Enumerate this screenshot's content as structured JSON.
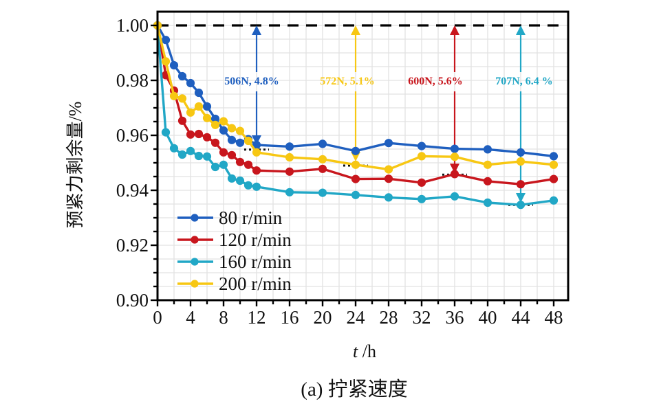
{
  "chart_data": {
    "type": "line",
    "title": "",
    "caption": "(a) 拧紧速度",
    "xlabel_italic": "t",
    "xlabel_unit": " /h",
    "ylabel": "预紧力剩余量/%",
    "xlim": [
      0,
      49.8
    ],
    "ylim": [
      0.9,
      1.005
    ],
    "xticks": [
      0,
      4,
      8,
      12,
      16,
      20,
      24,
      28,
      32,
      36,
      40,
      44,
      48
    ],
    "xtick_labels": [
      "0",
      "4",
      "8",
      "12",
      "16",
      "20",
      "24",
      "28",
      "32",
      "36",
      "40",
      "44",
      "48"
    ],
    "yticks": [
      0.9,
      0.92,
      0.94,
      0.96,
      0.98,
      1.0
    ],
    "ytick_labels": [
      "0.90",
      "0.92",
      "0.94",
      "0.96",
      "0.98",
      "1.00"
    ],
    "grid": true,
    "legend_position": "bottom-left",
    "reference_line": {
      "y": 1.0,
      "style": "dashed",
      "color": "#000000"
    },
    "x": [
      0,
      1,
      2,
      3,
      4,
      5,
      6,
      7,
      8,
      9,
      10,
      11,
      12,
      16,
      20,
      24,
      28,
      32,
      36,
      40,
      44,
      48
    ],
    "series": [
      {
        "name": "80 r/min",
        "color": "#1f5fbf",
        "values": [
          1.0,
          0.9947,
          0.9855,
          0.9815,
          0.979,
          0.9755,
          0.9705,
          0.966,
          0.9618,
          0.9583,
          0.9573,
          0.9586,
          0.9565,
          0.9559,
          0.9569,
          0.9543,
          0.9572,
          0.9561,
          0.9551,
          0.9549,
          0.9538,
          0.9524
        ]
      },
      {
        "name": "120 r/min",
        "color": "#c8161d",
        "values": [
          1.0,
          0.9819,
          0.9763,
          0.9653,
          0.9603,
          0.9605,
          0.9593,
          0.9573,
          0.9538,
          0.9528,
          0.9503,
          0.9493,
          0.9472,
          0.9468,
          0.9478,
          0.9441,
          0.9442,
          0.9428,
          0.9459,
          0.9433,
          0.9422,
          0.9441
        ]
      },
      {
        "name": "160 r/min",
        "color": "#21a7c6",
        "values": [
          1.0,
          0.9611,
          0.9553,
          0.953,
          0.9543,
          0.9525,
          0.9523,
          0.9485,
          0.9493,
          0.9443,
          0.9435,
          0.9418,
          0.9413,
          0.9393,
          0.9391,
          0.9383,
          0.9374,
          0.9368,
          0.9378,
          0.9355,
          0.9347,
          0.9363
        ]
      },
      {
        "name": "200 r/min",
        "color": "#f7c713",
        "values": [
          1.0,
          0.9869,
          0.9743,
          0.9734,
          0.9683,
          0.9705,
          0.9663,
          0.9638,
          0.9651,
          0.9626,
          0.9616,
          0.958,
          0.9538,
          0.952,
          0.9513,
          0.9493,
          0.9476,
          0.9524,
          0.9522,
          0.9493,
          0.9505,
          0.9493
        ]
      }
    ],
    "annotations": [
      {
        "text": "506N, 4.8%",
        "x": 12,
        "y_top": 1.0,
        "y_bottom": 0.9565,
        "ref_y": 0.9548,
        "color": "#1f5fbf"
      },
      {
        "text": "572N, 5.1%",
        "x": 24,
        "y_top": 1.0,
        "y_bottom": 0.9505,
        "ref_y": 0.949,
        "color": "#f7c713"
      },
      {
        "text": "600N, 5.6%",
        "x": 36,
        "y_top": 1.0,
        "y_bottom": 0.9462,
        "ref_y": 0.9457,
        "color": "#c8161d"
      },
      {
        "text": "707N, 6.4 %",
        "x": 44,
        "y_top": 1.0,
        "y_bottom": 0.9355,
        "ref_y": 0.9347,
        "color": "#21a7c6"
      }
    ]
  }
}
